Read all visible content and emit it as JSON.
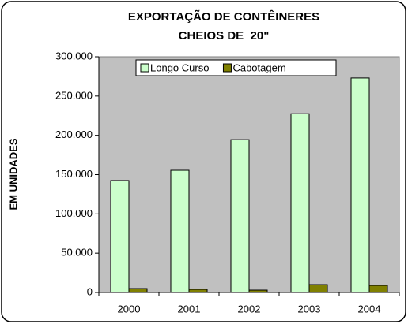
{
  "chart_data": {
    "type": "bar",
    "title": [
      "EXPORTAÇÃO DE CONTÊINERES",
      "CHEIOS DE  20\""
    ],
    "y_label": "EM UNIDADES",
    "categories": [
      "2000",
      "2001",
      "2002",
      "2003",
      "2004"
    ],
    "series": [
      {
        "name": "Longo Curso",
        "color": "#ccffcc",
        "values": [
          142500,
          155500,
          194500,
          227500,
          273000
        ]
      },
      {
        "name": "Cabotagem",
        "color": "#808000",
        "values": [
          5000,
          4000,
          3000,
          10000,
          9000
        ]
      }
    ],
    "ylim": [
      0,
      300000
    ],
    "yticks": [
      0,
      {
        "value": 50000,
        "label": "50.000"
      },
      {
        "value": 100000,
        "label": "100.000"
      },
      {
        "value": 150000,
        "label": "150.000"
      },
      {
        "value": 200000,
        "label": "200.000"
      },
      {
        "value": 250000,
        "label": "250.000"
      },
      {
        "value": 300000,
        "label": "300.000"
      }
    ],
    "legend": "top",
    "plot_background": "#c0c0c0"
  }
}
